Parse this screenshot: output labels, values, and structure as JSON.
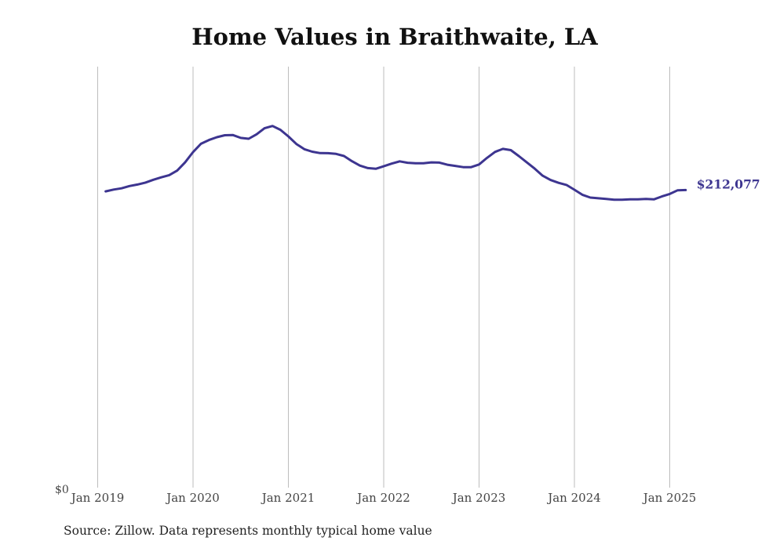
{
  "chart_data": {
    "type": "line",
    "title": "Home Values in Braithwaite, LA",
    "xlabel": "",
    "ylabel": "",
    "x_ticks": [
      "Jan 2019",
      "Jan 2020",
      "Jan 2021",
      "Jan 2022",
      "Jan 2023",
      "Jan 2024",
      "Jan 2025"
    ],
    "y_ticks": [
      "$0"
    ],
    "ylim": [
      0,
      300000
    ],
    "grid": "vertical",
    "series": [
      {
        "color": "#3d3590",
        "end_label": "$212,077",
        "points": [
          [
            "2019-02",
            211100
          ],
          [
            "2019-03",
            212400
          ],
          [
            "2019-04",
            213300
          ],
          [
            "2019-05",
            214900
          ],
          [
            "2019-06",
            216000
          ],
          [
            "2019-07",
            217400
          ],
          [
            "2019-08",
            219400
          ],
          [
            "2019-09",
            221100
          ],
          [
            "2019-10",
            222700
          ],
          [
            "2019-11",
            225900
          ],
          [
            "2019-12",
            231800
          ],
          [
            "2020-01",
            239100
          ],
          [
            "2020-02",
            245000
          ],
          [
            "2020-03",
            247700
          ],
          [
            "2020-04",
            249700
          ],
          [
            "2020-05",
            251100
          ],
          [
            "2020-06",
            251300
          ],
          [
            "2020-07",
            249200
          ],
          [
            "2020-08",
            248600
          ],
          [
            "2020-09",
            251800
          ],
          [
            "2020-10",
            256100
          ],
          [
            "2020-11",
            257700
          ],
          [
            "2020-12",
            255000
          ],
          [
            "2021-01",
            250300
          ],
          [
            "2021-02",
            244900
          ],
          [
            "2021-03",
            241200
          ],
          [
            "2021-04",
            239400
          ],
          [
            "2021-05",
            238400
          ],
          [
            "2021-06",
            238300
          ],
          [
            "2021-07",
            237800
          ],
          [
            "2021-08",
            236300
          ],
          [
            "2021-09",
            232600
          ],
          [
            "2021-10",
            229500
          ],
          [
            "2021-11",
            227700
          ],
          [
            "2021-12",
            227200
          ],
          [
            "2022-01",
            229000
          ],
          [
            "2022-02",
            230900
          ],
          [
            "2022-03",
            232500
          ],
          [
            "2022-04",
            231500
          ],
          [
            "2022-05",
            231100
          ],
          [
            "2022-06",
            231100
          ],
          [
            "2022-07",
            231800
          ],
          [
            "2022-08",
            231600
          ],
          [
            "2022-09",
            230100
          ],
          [
            "2022-10",
            229300
          ],
          [
            "2022-11",
            228400
          ],
          [
            "2022-12",
            228400
          ],
          [
            "2023-01",
            230300
          ],
          [
            "2023-02",
            235000
          ],
          [
            "2023-03",
            239200
          ],
          [
            "2023-04",
            241400
          ],
          [
            "2023-05",
            240500
          ],
          [
            "2023-06",
            236300
          ],
          [
            "2023-07",
            231800
          ],
          [
            "2023-08",
            227300
          ],
          [
            "2023-09",
            222300
          ],
          [
            "2023-10",
            219200
          ],
          [
            "2023-11",
            217200
          ],
          [
            "2023-12",
            215700
          ],
          [
            "2024-01",
            212300
          ],
          [
            "2024-02",
            208700
          ],
          [
            "2024-03",
            206700
          ],
          [
            "2024-04",
            206200
          ],
          [
            "2024-05",
            205700
          ],
          [
            "2024-06",
            205200
          ],
          [
            "2024-07",
            205200
          ],
          [
            "2024-08",
            205400
          ],
          [
            "2024-09",
            205500
          ],
          [
            "2024-10",
            205700
          ],
          [
            "2024-11",
            205400
          ],
          [
            "2024-12",
            207500
          ],
          [
            "2025-01",
            209300
          ],
          [
            "2025-02",
            211900
          ],
          [
            "2025-03",
            212077
          ]
        ]
      }
    ]
  },
  "footer": {
    "source": "Source: Zillow. Data represents monthly typical home value"
  }
}
